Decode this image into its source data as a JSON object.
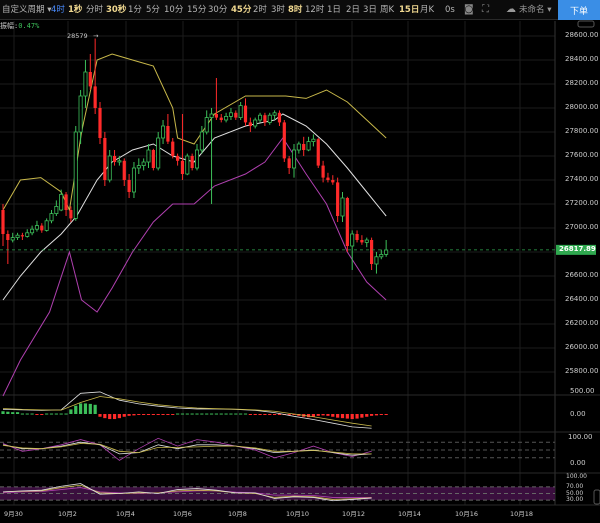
{
  "toolbar": {
    "custom_period": "自定义周期 ▾",
    "periods": [
      {
        "label": "4时",
        "state": "active"
      },
      {
        "label": "1秒",
        "state": "hl"
      },
      {
        "label": "分时",
        "state": ""
      },
      {
        "label": "30秒",
        "state": "hl"
      },
      {
        "label": "1分",
        "state": ""
      },
      {
        "label": "5分",
        "state": ""
      },
      {
        "label": "10分",
        "state": ""
      },
      {
        "label": "15分",
        "state": ""
      },
      {
        "label": "30分",
        "state": ""
      },
      {
        "label": "45分",
        "state": "hl"
      },
      {
        "label": "2时",
        "state": ""
      },
      {
        "label": "3时",
        "state": ""
      },
      {
        "label": "8时",
        "state": "hl"
      },
      {
        "label": "12时",
        "state": ""
      },
      {
        "label": "1日",
        "state": ""
      },
      {
        "label": "2日",
        "state": ""
      },
      {
        "label": "3日",
        "state": ""
      },
      {
        "label": "周K",
        "state": ""
      },
      {
        "label": "15日",
        "state": "hl"
      },
      {
        "label": "月K",
        "state": ""
      }
    ],
    "countdown": "0s",
    "camera_icon": "camera-icon",
    "fullscreen_icon": "fullscreen-icon",
    "cloud_icon": "cloud-icon",
    "layout_name": "未命名 ▾",
    "order_button": "下单"
  },
  "amplitude": {
    "label": "振幅:",
    "value": "0.47%"
  },
  "colors": {
    "up": "#3dbf5a",
    "down": "#ff2a2a",
    "bb_upper": "#c8b84a",
    "bb_mid": "#e0e0e0",
    "bb_lower": "#b040b0",
    "accent": "#3a8ee6",
    "last_price_bg": "#2fa84f"
  },
  "chart_data": [
    {
      "type": "candlestick",
      "pane": "price",
      "ylim": [
        25700,
        28700
      ],
      "y_ticks": [
        "28600.00",
        "28400.00",
        "28200.00",
        "28000.00",
        "27800.00",
        "27600.00",
        "27400.00",
        "27200.00",
        "27000.00",
        "26600.00",
        "26400.00",
        "26200.00",
        "26000.00",
        "25800.00"
      ],
      "x_ticks": [
        "9月30",
        "10月2",
        "10月4",
        "10月6",
        "10月8",
        "10月10",
        "10月12",
        "10月14",
        "10月16",
        "10月18"
      ],
      "max_marker": "28579",
      "last_price": "26817.89",
      "ohlc": [
        [
          27150,
          27200,
          26850,
          26950
        ],
        [
          26950,
          26980,
          26700,
          26900
        ],
        [
          26900,
          26960,
          26880,
          26920
        ],
        [
          26920,
          26960,
          26900,
          26940
        ],
        [
          26940,
          26960,
          26900,
          26930
        ],
        [
          26930,
          26990,
          26920,
          26960
        ],
        [
          26960,
          27020,
          26940,
          26990
        ],
        [
          26990,
          27060,
          26970,
          27020
        ],
        [
          27020,
          27040,
          26960,
          26980
        ],
        [
          26980,
          27080,
          26970,
          27060
        ],
        [
          27060,
          27150,
          27040,
          27120
        ],
        [
          27120,
          27230,
          27100,
          27180
        ],
        [
          27150,
          27320,
          27140,
          27280
        ],
        [
          27280,
          27300,
          27100,
          27150
        ],
        [
          27150,
          27180,
          27050,
          27080
        ],
        [
          27080,
          27850,
          27060,
          27800
        ],
        [
          27800,
          28150,
          27700,
          28100
        ],
        [
          28100,
          28400,
          28000,
          28300
        ],
        [
          28300,
          28450,
          28150,
          28180
        ],
        [
          28180,
          28579,
          27950,
          28000
        ],
        [
          28000,
          28050,
          27700,
          27750
        ],
        [
          27750,
          27800,
          27350,
          27400
        ],
        [
          27400,
          27650,
          27380,
          27600
        ],
        [
          27600,
          27650,
          27520,
          27550
        ],
        [
          27550,
          27600,
          27520,
          27560
        ],
        [
          27560,
          27580,
          27350,
          27400
        ],
        [
          27400,
          27450,
          27250,
          27300
        ],
        [
          27300,
          27550,
          27250,
          27500
        ],
        [
          27500,
          27580,
          27450,
          27520
        ],
        [
          27520,
          27580,
          27480,
          27550
        ],
        [
          27550,
          27700,
          27500,
          27650
        ],
        [
          27650,
          27660,
          27480,
          27500
        ],
        [
          27500,
          27800,
          27480,
          27750
        ],
        [
          27750,
          27900,
          27700,
          27850
        ],
        [
          27850,
          27950,
          27700,
          27720
        ],
        [
          27720,
          27750,
          27580,
          27600
        ],
        [
          27600,
          27620,
          27520,
          27560
        ],
        [
          27560,
          27950,
          27400,
          27450
        ],
        [
          27450,
          27620,
          27440,
          27600
        ],
        [
          27600,
          27620,
          27480,
          27500
        ],
        [
          27500,
          27700,
          27480,
          27650
        ],
        [
          27650,
          27850,
          27620,
          27800
        ],
        [
          27800,
          27980,
          27780,
          27920
        ],
        [
          27920,
          28000,
          27200,
          27950
        ],
        [
          27950,
          28250,
          27900,
          27920
        ],
        [
          27920,
          27950,
          27880,
          27900
        ],
        [
          27900,
          27960,
          27880,
          27930
        ],
        [
          27930,
          28000,
          27900,
          27960
        ],
        [
          27960,
          27980,
          27900,
          27920
        ],
        [
          27920,
          28050,
          27900,
          28020
        ],
        [
          28020,
          28080,
          27850,
          27880
        ],
        [
          27880,
          27920,
          27800,
          27850
        ],
        [
          27850,
          27920,
          27830,
          27900
        ],
        [
          27900,
          27960,
          27880,
          27940
        ],
        [
          27940,
          27960,
          27850,
          27880
        ],
        [
          27880,
          27960,
          27860,
          27940
        ],
        [
          27940,
          27980,
          27900,
          27960
        ],
        [
          27960,
          27980,
          27850,
          27880
        ],
        [
          27880,
          27900,
          27550,
          27580
        ],
        [
          27580,
          27600,
          27450,
          27500
        ],
        [
          27500,
          27700,
          27420,
          27650
        ],
        [
          27650,
          27720,
          27620,
          27700
        ],
        [
          27700,
          27760,
          27600,
          27650
        ],
        [
          27650,
          27760,
          27640,
          27720
        ],
        [
          27720,
          27780,
          27680,
          27740
        ],
        [
          27740,
          27750,
          27500,
          27520
        ],
        [
          27520,
          27560,
          27380,
          27420
        ],
        [
          27420,
          27460,
          27380,
          27400
        ],
        [
          27400,
          27440,
          27360,
          27380
        ],
        [
          27380,
          27420,
          27050,
          27100
        ],
        [
          27100,
          27300,
          27050,
          27250
        ],
        [
          27250,
          27260,
          26800,
          26850
        ],
        [
          26850,
          26980,
          26650,
          26950
        ],
        [
          26950,
          26980,
          26880,
          26900
        ],
        [
          26900,
          26940,
          26860,
          26880
        ],
        [
          26880,
          26920,
          26840,
          26900
        ],
        [
          26900,
          26920,
          26650,
          26700
        ],
        [
          26700,
          26800,
          26620,
          26760
        ],
        [
          26760,
          26820,
          26740,
          26780
        ],
        [
          26780,
          26900,
          26760,
          26817
        ]
      ],
      "bollinger": {
        "upper": [
          [
            0,
            27150
          ],
          [
            3.6,
            27400
          ],
          [
            7.8,
            27420
          ],
          [
            12,
            27300
          ],
          [
            13.7,
            27150
          ],
          [
            16.2,
            27800
          ],
          [
            19.4,
            28400
          ],
          [
            22.5,
            28450
          ],
          [
            26.7,
            28400
          ],
          [
            31,
            28350
          ],
          [
            35,
            28000
          ],
          [
            36,
            27750
          ],
          [
            39.4,
            27700
          ],
          [
            43.6,
            27950
          ],
          [
            50,
            28100
          ],
          [
            54,
            28100
          ],
          [
            58.3,
            28100
          ],
          [
            62.5,
            28080
          ],
          [
            66.7,
            28150
          ],
          [
            71,
            28050
          ],
          [
            75,
            27900
          ],
          [
            79,
            27750
          ]
        ],
        "mid": [
          [
            0,
            26400
          ],
          [
            3.6,
            26600
          ],
          [
            7.8,
            26800
          ],
          [
            12,
            26950
          ],
          [
            15.2,
            27100
          ],
          [
            19.4,
            27400
          ],
          [
            22.5,
            27550
          ],
          [
            26.7,
            27650
          ],
          [
            31,
            27700
          ],
          [
            35,
            27600
          ],
          [
            39.4,
            27550
          ],
          [
            43.6,
            27750
          ],
          [
            50,
            27850
          ],
          [
            56,
            27900
          ],
          [
            57.7,
            27950
          ],
          [
            62.5,
            27850
          ],
          [
            66.7,
            27700
          ],
          [
            71,
            27500
          ],
          [
            75,
            27300
          ],
          [
            79,
            27100
          ]
        ],
        "lower": [
          [
            0,
            25600
          ],
          [
            3.6,
            25900
          ],
          [
            9.6,
            26300
          ],
          [
            13.7,
            26800
          ],
          [
            16.2,
            26400
          ],
          [
            19.4,
            26300
          ],
          [
            22.5,
            26500
          ],
          [
            26.7,
            26800
          ],
          [
            31,
            27050
          ],
          [
            35,
            27200
          ],
          [
            39.4,
            27200
          ],
          [
            43.6,
            27350
          ],
          [
            50,
            27450
          ],
          [
            54,
            27550
          ],
          [
            57.7,
            27750
          ],
          [
            62.5,
            27450
          ],
          [
            66.7,
            27200
          ],
          [
            71,
            26800
          ],
          [
            75,
            26550
          ],
          [
            79,
            26400
          ]
        ]
      }
    },
    {
      "type": "macd",
      "y_ticks": [
        "500.00",
        "0.00"
      ],
      "sample_step": 4,
      "dif": [
        100,
        90,
        80,
        90,
        450,
        480,
        300,
        220,
        170,
        130,
        110,
        110,
        100,
        80,
        30,
        -50,
        -120,
        -200,
        -280,
        -310
      ],
      "dea": [
        120,
        100,
        90,
        85,
        250,
        380,
        330,
        260,
        200,
        160,
        130,
        115,
        105,
        90,
        60,
        0,
        -60,
        -130,
        -200,
        -260
      ],
      "histogram": [
        60,
        50,
        40,
        40,
        10,
        10,
        10,
        -10,
        -10,
        10,
        10,
        10,
        10,
        10,
        100,
        180,
        230,
        230,
        220,
        200,
        -60,
        -90,
        -110,
        -110,
        -90,
        -60,
        -40,
        -30,
        -20,
        -20,
        -20,
        -15,
        -15,
        -20,
        -20,
        -15,
        10,
        10,
        10,
        10,
        10,
        10,
        10,
        10,
        10,
        10,
        10,
        10,
        10,
        10,
        10,
        -10,
        -10,
        -10,
        -10,
        -10,
        -10,
        -10,
        -10,
        -10,
        -10,
        -40,
        -60,
        -70,
        -60,
        -40,
        -30,
        -40,
        -60,
        -80,
        -90,
        -100,
        -110,
        -100,
        -80,
        -60,
        -40,
        -30,
        -20,
        -15
      ]
    },
    {
      "type": "kdj",
      "y_ticks": [
        "100.00",
        "0.00"
      ],
      "levels": [
        80,
        50,
        20
      ],
      "sample_step": 4,
      "k": [
        70,
        55,
        55,
        65,
        80,
        70,
        35,
        40,
        70,
        55,
        70,
        70,
        65,
        55,
        40,
        45,
        50,
        40,
        30,
        35
      ],
      "d": [
        68,
        58,
        55,
        62,
        75,
        72,
        45,
        40,
        60,
        60,
        62,
        65,
        65,
        58,
        45,
        45,
        48,
        42,
        35,
        35
      ],
      "j": [
        75,
        45,
        55,
        70,
        90,
        70,
        10,
        55,
        95,
        65,
        90,
        80,
        65,
        50,
        20,
        40,
        65,
        40,
        25,
        45
      ]
    },
    {
      "type": "rsi",
      "y_ticks": [
        "100.00",
        "70.00",
        "50.00",
        "30.00"
      ],
      "levels": [
        70,
        50,
        30
      ],
      "sample_step": 4,
      "rsi1": [
        55,
        58,
        60,
        72,
        80,
        48,
        50,
        55,
        50,
        62,
        65,
        60,
        52,
        52,
        35,
        40,
        38,
        28,
        32,
        36
      ],
      "rsi2": [
        55,
        57,
        58,
        68,
        75,
        52,
        50,
        52,
        52,
        58,
        60,
        58,
        52,
        50,
        38,
        42,
        40,
        32,
        34,
        37
      ],
      "rsi3": [
        52,
        55,
        56,
        62,
        68,
        55,
        52,
        50,
        52,
        55,
        58,
        58,
        54,
        52,
        45,
        45,
        44,
        38,
        38,
        38
      ]
    }
  ]
}
